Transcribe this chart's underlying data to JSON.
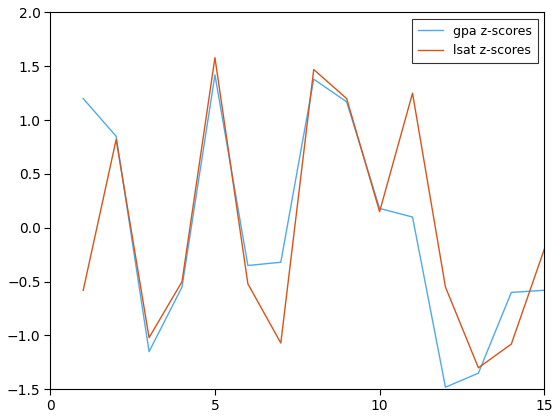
{
  "x": [
    1,
    2,
    3,
    4,
    5,
    6,
    7,
    8,
    9,
    10,
    11,
    12,
    13,
    14,
    15
  ],
  "gpa_z": [
    1.2,
    0.85,
    -1.15,
    -0.55,
    1.42,
    -0.35,
    -0.32,
    1.38,
    1.17,
    0.18,
    0.1,
    -1.48,
    -1.35,
    -0.6,
    -0.58
  ],
  "lsat_z": [
    -0.58,
    0.82,
    -1.02,
    -0.5,
    1.58,
    -0.52,
    -1.07,
    1.47,
    1.2,
    0.15,
    1.25,
    -0.55,
    -1.3,
    -1.08,
    -0.2
  ],
  "gpa_color": "#4DAAEE",
  "lsat_color": "#D95319",
  "gpa_label": "gpa z-scores",
  "lsat_label": "lsat z-scores",
  "xlim": [
    0,
    15
  ],
  "ylim": [
    -1.5,
    2
  ],
  "xticks": [
    0,
    5,
    10,
    15
  ],
  "yticks": [
    -1.5,
    -1.0,
    -0.5,
    0.0,
    0.5,
    1.0,
    1.5,
    2.0
  ],
  "linewidth": 1.0,
  "figsize": [
    5.6,
    4.2
  ],
  "dpi": 100,
  "bg_color": "#FFFFFF",
  "axes_color": "#000000"
}
